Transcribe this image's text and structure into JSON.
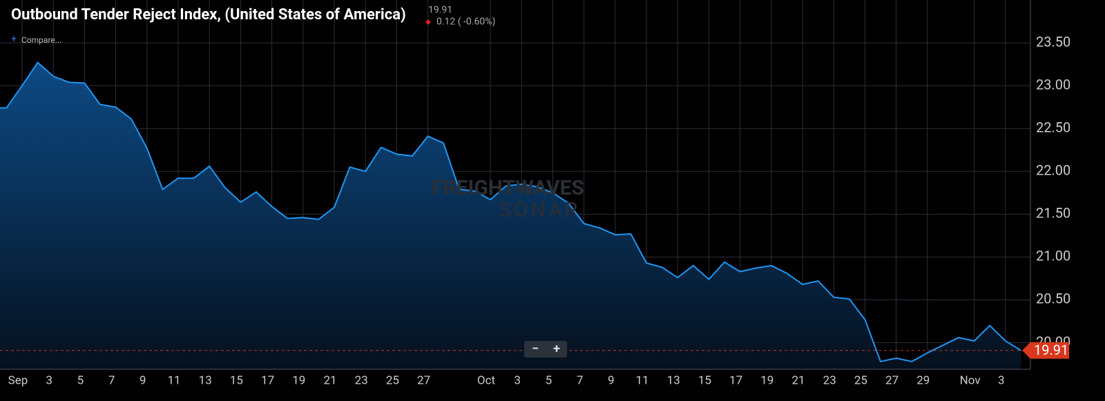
{
  "header": {
    "title": "Outbound Tender Reject Index, (United States of America)",
    "value": "19.91",
    "change": "0.12 ( -0.60%)",
    "compare": "Compare..."
  },
  "watermark": {
    "line1": "FREIGHTWAVES",
    "line2": "SONAR"
  },
  "zoom_controls": [
    "−",
    "+"
  ],
  "chart_data": {
    "type": "area",
    "categories": [
      "Aug 31",
      "Sep 1",
      "Sep 2",
      "Sep 3",
      "Sep 4",
      "Sep 5",
      "Sep 6",
      "Sep 7",
      "Sep 8",
      "Sep 9",
      "Sep 10",
      "Sep 11",
      "Sep 12",
      "Sep 13",
      "Sep 14",
      "Sep 15",
      "Sep 16",
      "Sep 17",
      "Sep 18",
      "Sep 19",
      "Sep 20",
      "Sep 21",
      "Sep 22",
      "Sep 23",
      "Sep 24",
      "Sep 25",
      "Sep 26",
      "Sep 27",
      "Sep 28",
      "Sep 29",
      "Sep 30",
      "Oct 1",
      "Oct 2",
      "Oct 3",
      "Oct 4",
      "Oct 5",
      "Oct 6",
      "Oct 7",
      "Oct 8",
      "Oct 9",
      "Oct 10",
      "Oct 11",
      "Oct 12",
      "Oct 13",
      "Oct 14",
      "Oct 15",
      "Oct 16",
      "Oct 17",
      "Oct 18",
      "Oct 19",
      "Oct 20",
      "Oct 21",
      "Oct 22",
      "Oct 23",
      "Oct 24",
      "Oct 25",
      "Oct 26",
      "Oct 27",
      "Oct 28",
      "Oct 29",
      "Oct 30",
      "Oct 31",
      "Nov 1",
      "Nov 2",
      "Nov 3",
      "Nov 4"
    ],
    "series": [
      {
        "name": "Outbound Tender Reject Index",
        "color": "#2196f3",
        "values": [
          22.74,
          23.0,
          23.27,
          23.11,
          23.04,
          23.03,
          22.78,
          22.75,
          22.61,
          22.27,
          21.79,
          21.92,
          21.92,
          22.06,
          21.81,
          21.64,
          21.76,
          21.59,
          21.45,
          21.46,
          21.44,
          21.58,
          22.05,
          22.0,
          22.28,
          22.2,
          22.18,
          22.41,
          22.33,
          21.79,
          21.77,
          21.67,
          21.83,
          21.85,
          21.82,
          21.75,
          21.63,
          21.39,
          21.34,
          21.26,
          21.27,
          20.93,
          20.88,
          20.76,
          20.9,
          20.74,
          20.94,
          20.83,
          20.87,
          20.9,
          20.81,
          20.68,
          20.72,
          20.53,
          20.51,
          20.27,
          19.78,
          19.82,
          19.78,
          19.88,
          19.97,
          20.06,
          20.02,
          20.2,
          20.02,
          19.91
        ]
      }
    ],
    "last_value_label": "19.91",
    "ylim": [
      19.69,
      24.0
    ],
    "yticks": [
      {
        "value": 20,
        "label": "20.00"
      },
      {
        "value": 20.5,
        "label": "20.50"
      },
      {
        "value": 21,
        "label": "21.00"
      },
      {
        "value": 21.5,
        "label": "21.50"
      },
      {
        "value": 22,
        "label": "22.00"
      },
      {
        "value": 22.5,
        "label": "22.50"
      },
      {
        "value": 23,
        "label": "23.00"
      },
      {
        "value": 23.5,
        "label": "23.50"
      }
    ],
    "xticks": [
      {
        "value": "Sep 1",
        "label": "Sep"
      },
      {
        "value": "Sep 3",
        "label": "3"
      },
      {
        "value": "Sep 5",
        "label": "5"
      },
      {
        "value": "Sep 7",
        "label": "7"
      },
      {
        "value": "Sep 9",
        "label": "9"
      },
      {
        "value": "Sep 11",
        "label": "11"
      },
      {
        "value": "Sep 13",
        "label": "13"
      },
      {
        "value": "Sep 15",
        "label": "15"
      },
      {
        "value": "Sep 17",
        "label": "17"
      },
      {
        "value": "Sep 19",
        "label": "19"
      },
      {
        "value": "Sep 21",
        "label": "21"
      },
      {
        "value": "Sep 23",
        "label": "23"
      },
      {
        "value": "Sep 25",
        "label": "25"
      },
      {
        "value": "Sep 27",
        "label": "27"
      },
      {
        "value": "Oct 1",
        "label": "Oct"
      },
      {
        "value": "Oct 3",
        "label": "3"
      },
      {
        "value": "Oct 5",
        "label": "5"
      },
      {
        "value": "Oct 7",
        "label": "7"
      },
      {
        "value": "Oct 9",
        "label": "9"
      },
      {
        "value": "Oct 11",
        "label": "11"
      },
      {
        "value": "Oct 13",
        "label": "13"
      },
      {
        "value": "Oct 15",
        "label": "15"
      },
      {
        "value": "Oct 17",
        "label": "17"
      },
      {
        "value": "Oct 19",
        "label": "19"
      },
      {
        "value": "Oct 21",
        "label": "21"
      },
      {
        "value": "Oct 23",
        "label": "23"
      },
      {
        "value": "Oct 25",
        "label": "25"
      },
      {
        "value": "Oct 27",
        "label": "27"
      },
      {
        "value": "Oct 29",
        "label": "29"
      },
      {
        "value": "Nov 1",
        "label": "Nov"
      },
      {
        "value": "Nov 3",
        "label": "3"
      }
    ],
    "grid": true
  }
}
